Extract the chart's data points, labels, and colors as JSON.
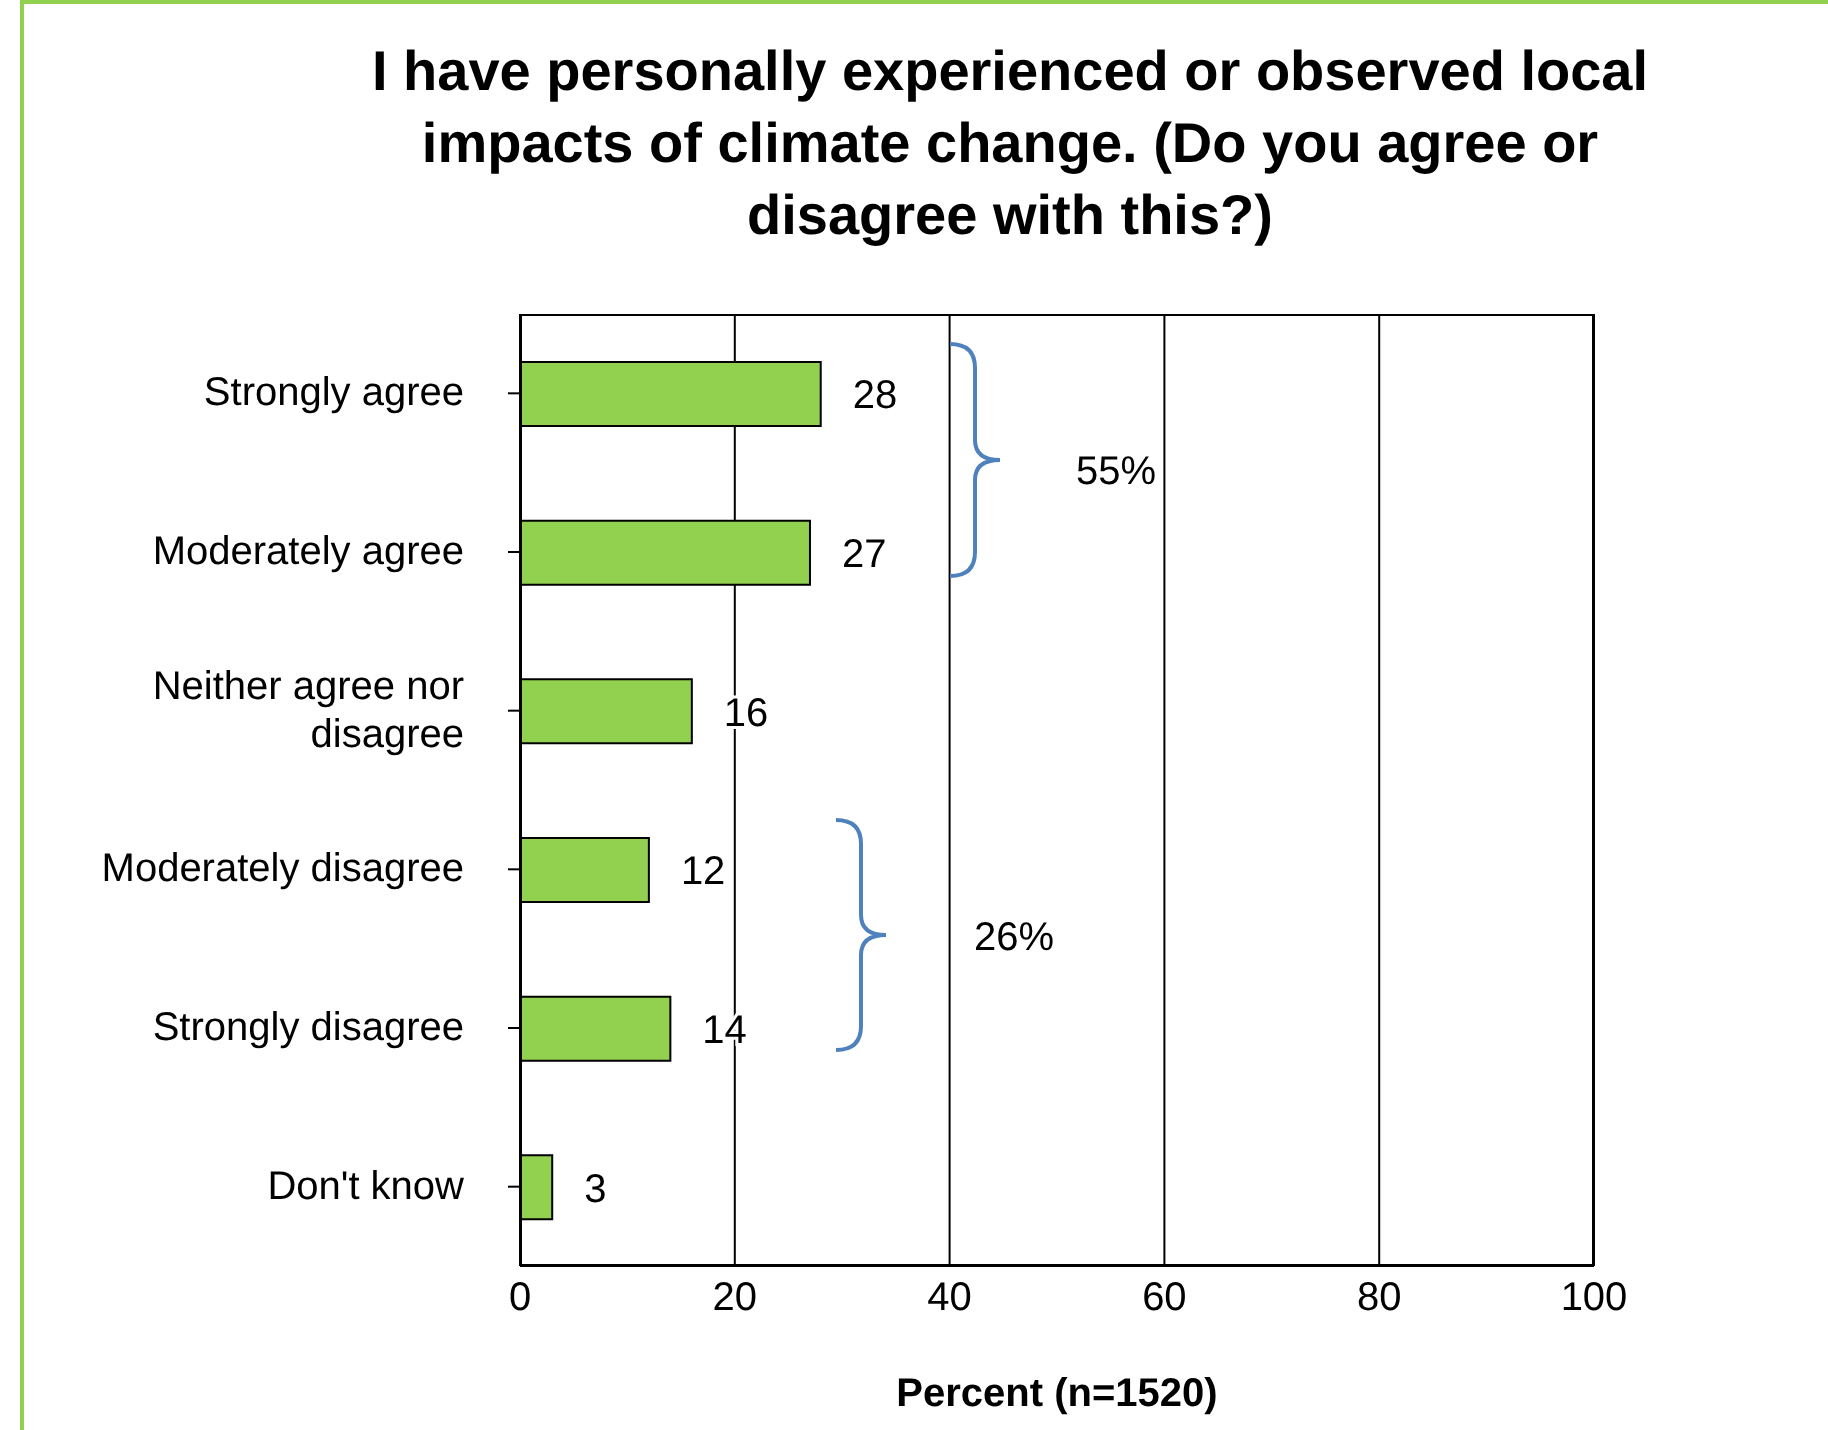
{
  "chart_data": {
    "type": "bar",
    "orientation": "horizontal",
    "title": "I have personally experienced or observed local impacts of climate change. (Do you agree or disagree with this?)",
    "xlabel": "Percent (n=1520)",
    "categories": [
      "Strongly agree",
      "Moderately agree",
      "Neither agree nor disagree",
      "Moderately disagree",
      "Strongly disagree",
      "Don't know"
    ],
    "values": [
      28,
      27,
      16,
      12,
      14,
      3
    ],
    "color": "#92d050",
    "data_labels": true,
    "xlim": [
      0,
      100
    ],
    "xticks": [
      0,
      20,
      40,
      60,
      80,
      100
    ],
    "grid": "x",
    "annotations": [
      "55%",
      "26%"
    ]
  }
}
